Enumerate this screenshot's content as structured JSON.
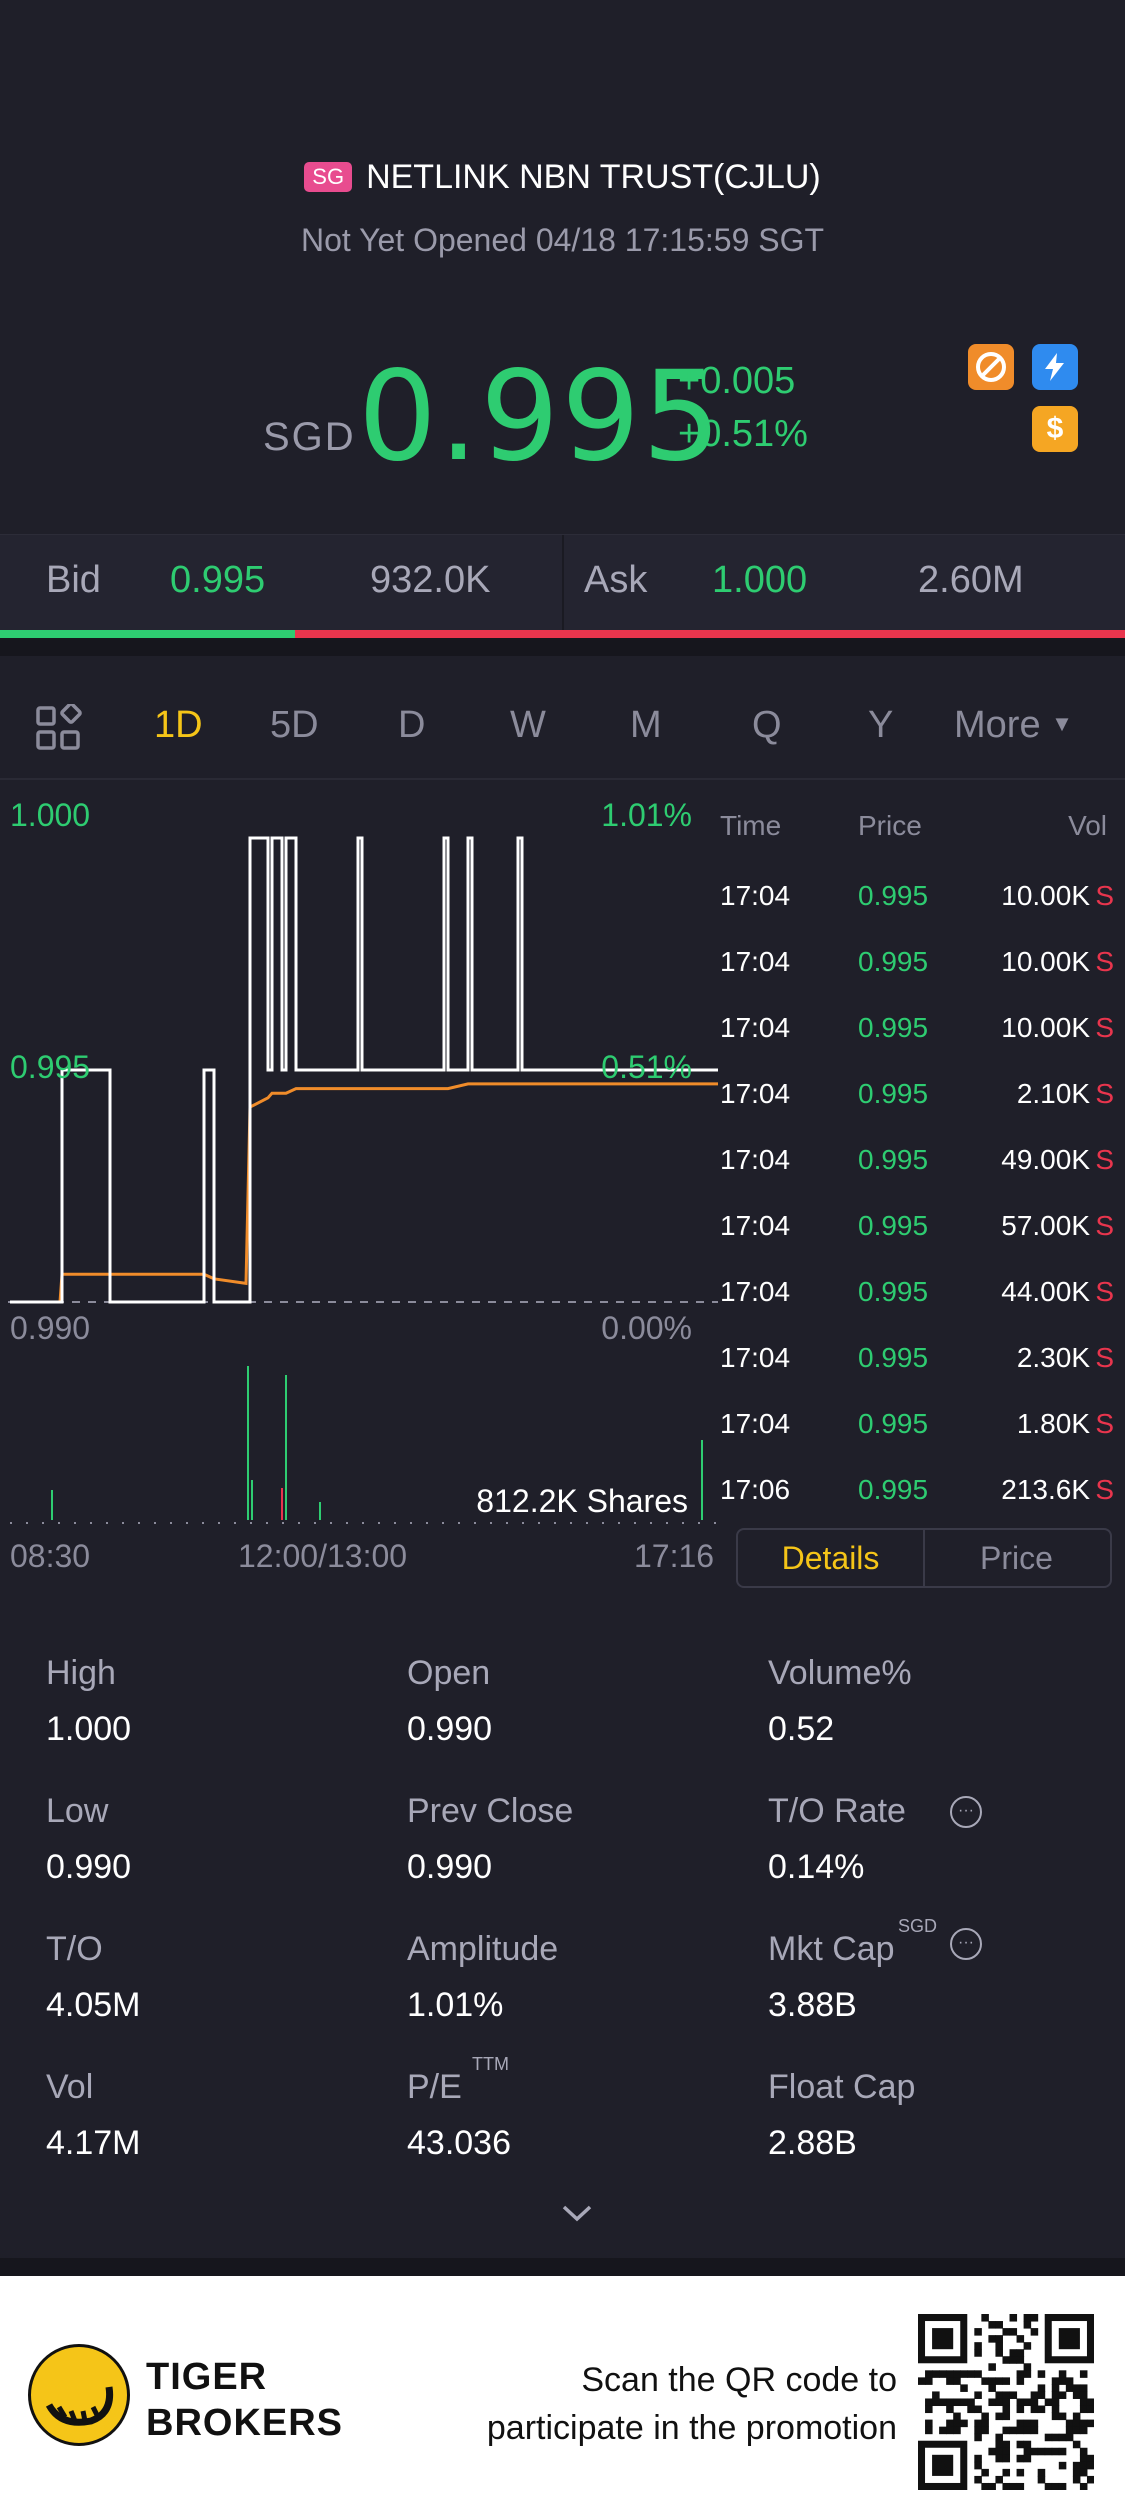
{
  "header": {
    "market_badge": "SG",
    "title": "NETLINK NBN TRUST(CJLU)",
    "status": "Not Yet Opened 04/18 17:15:59 SGT"
  },
  "quote": {
    "currency": "SGD",
    "price": "0.995",
    "change": "+0.005",
    "change_pct": "+0.51%",
    "icons": [
      "no-short-icon",
      "lightning-icon",
      "dollar-icon"
    ],
    "up_color": "#2ecc71",
    "down_color": "#e8354d"
  },
  "bidask": {
    "bid_label": "Bid",
    "bid_price": "0.995",
    "bid_size": "932.0K",
    "ask_label": "Ask",
    "ask_price": "1.000",
    "ask_size": "2.60M",
    "bid_fraction": 0.262
  },
  "tabs": {
    "items": [
      "1D",
      "5D",
      "D",
      "W",
      "M",
      "Q",
      "Y",
      "More"
    ],
    "active": "1D"
  },
  "chart": {
    "y_top": "1.000",
    "y_mid": "0.995",
    "y_bottom": "0.990",
    "pct_top": "1.01%",
    "pct_mid": "0.51%",
    "pct_bottom": "0.00%",
    "volume_label": "812.2K Shares",
    "x_start": "08:30",
    "x_mid": "12:00/13:00",
    "x_end": "17:16"
  },
  "chart_data": {
    "type": "line",
    "ylim": [
      0.99,
      1.0
    ],
    "series": [
      {
        "values": [
          0.99,
          0.99,
          0.995,
          0.995,
          0.99,
          0.99,
          0.995,
          0.99,
          0.99,
          1.0,
          0.995,
          1.0,
          0.995,
          1.0,
          0.995,
          1.0,
          0.995,
          1.0,
          0.995,
          1.0,
          0.995,
          1.0,
          0.995,
          0.995
        ]
      },
      {
        "values": [
          0.99,
          0.99,
          0.9906,
          0.9906,
          0.9906,
          0.9906,
          0.9906,
          0.9905,
          0.9904,
          0.9942,
          0.9944,
          0.9945,
          0.9945,
          0.9945,
          0.9946,
          0.9946,
          0.9946,
          0.9946,
          0.9946,
          0.9947,
          0.9947,
          0.9947,
          0.9947,
          0.9947
        ]
      }
    ]
  },
  "trades": {
    "headers": {
      "time": "Time",
      "price": "Price",
      "vol": "Vol"
    },
    "rows": [
      {
        "time": "17:04",
        "price": "0.995",
        "vol": "10.00K",
        "side": "S"
      },
      {
        "time": "17:04",
        "price": "0.995",
        "vol": "10.00K",
        "side": "S"
      },
      {
        "time": "17:04",
        "price": "0.995",
        "vol": "10.00K",
        "side": "S"
      },
      {
        "time": "17:04",
        "price": "0.995",
        "vol": "2.10K",
        "side": "S"
      },
      {
        "time": "17:04",
        "price": "0.995",
        "vol": "49.00K",
        "side": "S"
      },
      {
        "time": "17:04",
        "price": "0.995",
        "vol": "57.00K",
        "side": "S"
      },
      {
        "time": "17:04",
        "price": "0.995",
        "vol": "44.00K",
        "side": "S"
      },
      {
        "time": "17:04",
        "price": "0.995",
        "vol": "2.30K",
        "side": "S"
      },
      {
        "time": "17:04",
        "price": "0.995",
        "vol": "1.80K",
        "side": "S"
      },
      {
        "time": "17:06",
        "price": "0.995",
        "vol": "213.6K",
        "side": "S"
      }
    ]
  },
  "segment": {
    "details": "Details",
    "price": "Price"
  },
  "details": {
    "high_label": "High",
    "high": "1.000",
    "open_label": "Open",
    "open": "0.990",
    "volpct_label": "Volume%",
    "volpct": "0.52",
    "low_label": "Low",
    "low": "0.990",
    "prevclose_label": "Prev Close",
    "prevclose": "0.990",
    "torate_label": "T/O Rate",
    "torate": "0.14%",
    "to_label": "T/O",
    "to": "4.05M",
    "amplitude_label": "Amplitude",
    "amplitude": "1.01%",
    "mktcap_label": "Mkt Cap",
    "mktcap_sup": "SGD",
    "mktcap": "3.88B",
    "vol_label": "Vol",
    "vol": "4.17M",
    "pe_label": "P/E",
    "pe_sup": "TTM",
    "pe": "43.036",
    "floatcap_label": "Float Cap",
    "floatcap": "2.88B"
  },
  "footer": {
    "brand_line1": "TIGER",
    "brand_line2": "BROKERS",
    "promo_line1": "Scan the QR code to",
    "promo_line2": "participate in the promotion"
  }
}
